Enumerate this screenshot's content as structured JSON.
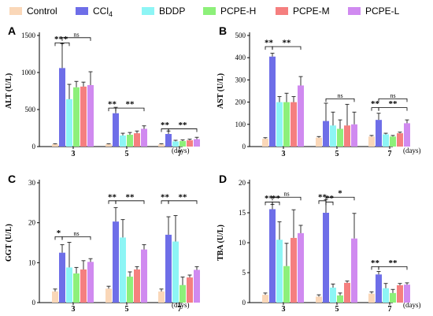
{
  "legend": [
    {
      "name": "Control",
      "sub": "",
      "color": "#FAD7B8"
    },
    {
      "name": "CCl",
      "sub": "4",
      "color": "#6E6EE8"
    },
    {
      "name": "BDDP",
      "sub": "",
      "color": "#8DF5F5"
    },
    {
      "name": "PCPE-H",
      "sub": "",
      "color": "#8DF07A"
    },
    {
      "name": "PCPE-M",
      "sub": "",
      "color": "#F57F7F"
    },
    {
      "name": "PCPE-L",
      "sub": "",
      "color": "#D08AF0"
    }
  ],
  "chart_data": [
    {
      "type": "bar",
      "panel": "A",
      "ylabel": "ALT (U/L)",
      "xlabel": "(days)",
      "ylim": [
        0,
        1500
      ],
      "yticks": [
        0,
        500,
        1000,
        1500
      ],
      "categories": [
        "3",
        "5",
        "7"
      ],
      "series": [
        {
          "name": "Control",
          "values": [
            30,
            30,
            30
          ],
          "errors": [
            8,
            8,
            8
          ]
        },
        {
          "name": "CCl4",
          "values": [
            1060,
            450,
            170
          ],
          "errors": [
            330,
            80,
            40
          ]
        },
        {
          "name": "BDDP",
          "values": [
            640,
            150,
            70
          ],
          "errors": [
            200,
            30,
            15
          ]
        },
        {
          "name": "PCPE-H",
          "values": [
            800,
            160,
            75
          ],
          "errors": [
            80,
            30,
            15
          ]
        },
        {
          "name": "PCPE-M",
          "values": [
            810,
            180,
            85
          ],
          "errors": [
            60,
            30,
            15
          ]
        },
        {
          "name": "PCPE-L",
          "values": [
            830,
            240,
            100
          ],
          "errors": [
            180,
            40,
            25
          ]
        }
      ],
      "annotations": [
        {
          "label": "**",
          "cat": 0,
          "from": 0,
          "to": 1,
          "y": 1400
        },
        {
          "label": "*",
          "cat": 0,
          "from": 1,
          "to": 2,
          "y": 1400
        },
        {
          "label": "ns",
          "cat": 0,
          "from": 1,
          "to": 5,
          "y": 1470
        },
        {
          "label": "**",
          "cat": 1,
          "from": 0,
          "to": 1,
          "y": 520
        },
        {
          "label": "**",
          "cat": 1,
          "from": 1,
          "to": 5,
          "y": 520
        },
        {
          "label": "**",
          "cat": 2,
          "from": 0,
          "to": 1,
          "y": 240
        },
        {
          "label": "**",
          "cat": 2,
          "from": 1,
          "to": 5,
          "y": 240
        }
      ]
    },
    {
      "type": "bar",
      "panel": "B",
      "ylabel": "AST (U/L)",
      "xlabel": "(days)",
      "ylim": [
        0,
        500
      ],
      "yticks": [
        0,
        100,
        200,
        300,
        400,
        500
      ],
      "categories": [
        "3",
        "5",
        "7"
      ],
      "series": [
        {
          "name": "Control",
          "values": [
            35,
            40,
            45
          ],
          "errors": [
            5,
            5,
            5
          ]
        },
        {
          "name": "CCl4",
          "values": [
            405,
            115,
            120
          ],
          "errors": [
            15,
            80,
            30
          ]
        },
        {
          "name": "BDDP",
          "values": [
            200,
            95,
            55
          ],
          "errors": [
            25,
            60,
            5
          ]
        },
        {
          "name": "PCPE-H",
          "values": [
            200,
            80,
            45
          ],
          "errors": [
            40,
            40,
            5
          ]
        },
        {
          "name": "PCPE-M",
          "values": [
            200,
            95,
            60
          ],
          "errors": [
            25,
            95,
            5
          ]
        },
        {
          "name": "PCPE-L",
          "values": [
            275,
            100,
            105
          ],
          "errors": [
            40,
            55,
            15
          ]
        }
      ],
      "annotations": [
        {
          "label": "**",
          "cat": 0,
          "from": 0,
          "to": 1,
          "y": 450
        },
        {
          "label": "**",
          "cat": 0,
          "from": 1,
          "to": 5,
          "y": 450
        },
        {
          "label": "ns",
          "cat": 1,
          "from": 1,
          "to": 5,
          "y": 215
        },
        {
          "label": "**",
          "cat": 2,
          "from": 0,
          "to": 1,
          "y": 175
        },
        {
          "label": "**",
          "cat": 2,
          "from": 1,
          "to": 5,
          "y": 175
        },
        {
          "label": "ns",
          "cat": 2,
          "from": 1,
          "to": 5,
          "y": 215
        }
      ]
    },
    {
      "type": "bar",
      "panel": "C",
      "ylabel": "GGT (U/L)",
      "xlabel": "(days)",
      "ylim": [
        0,
        30
      ],
      "yticks": [
        0,
        10,
        20,
        30
      ],
      "categories": [
        "3",
        "5",
        "7"
      ],
      "series": [
        {
          "name": "Control",
          "values": [
            2.8,
            3.5,
            2.8
          ],
          "errors": [
            0.6,
            0.6,
            0.6
          ]
        },
        {
          "name": "CCl4",
          "values": [
            12.5,
            20.3,
            17.0
          ],
          "errors": [
            2.0,
            3.5,
            4.5
          ]
        },
        {
          "name": "BDDP",
          "values": [
            8.8,
            16.3,
            15.3
          ],
          "errors": [
            6.3,
            4.5,
            6.5
          ]
        },
        {
          "name": "PCPE-H",
          "values": [
            7.3,
            6.5,
            4.4
          ],
          "errors": [
            1.5,
            1.2,
            2.0
          ]
        },
        {
          "name": "PCPE-M",
          "values": [
            8.3,
            8.3,
            6.3
          ],
          "errors": [
            2.2,
            0.7,
            0.6
          ]
        },
        {
          "name": "PCPE-L",
          "values": [
            10.2,
            13.3,
            8.2
          ],
          "errors": [
            0.8,
            1.2,
            0.8
          ]
        }
      ],
      "annotations": [
        {
          "label": "*",
          "cat": 0,
          "from": 0,
          "to": 1,
          "y": 16.5
        },
        {
          "label": "ns",
          "cat": 0,
          "from": 1,
          "to": 5,
          "y": 16.5
        },
        {
          "label": "**",
          "cat": 1,
          "from": 0,
          "to": 1,
          "y": 25.5
        },
        {
          "label": "**",
          "cat": 1,
          "from": 1,
          "to": 5,
          "y": 25.5
        },
        {
          "label": "**",
          "cat": 2,
          "from": 0,
          "to": 1,
          "y": 25.5
        },
        {
          "label": "**",
          "cat": 2,
          "from": 1,
          "to": 5,
          "y": 25.5
        }
      ]
    },
    {
      "type": "bar",
      "panel": "D",
      "ylabel": "TBA (U/L)",
      "xlabel": "(days)",
      "ylim": [
        0,
        20
      ],
      "yticks": [
        0,
        5,
        10,
        15,
        20
      ],
      "categories": [
        "3",
        "5",
        "7"
      ],
      "series": [
        {
          "name": "Control",
          "values": [
            1.3,
            1.0,
            1.5
          ],
          "errors": [
            0.3,
            0.3,
            0.3
          ]
        },
        {
          "name": "CCl4",
          "values": [
            15.6,
            15.0,
            4.7
          ],
          "errors": [
            0.8,
            2.2,
            0.5
          ]
        },
        {
          "name": "BDDP",
          "values": [
            10.5,
            2.5,
            2.4
          ],
          "errors": [
            3.0,
            0.6,
            0.8
          ]
        },
        {
          "name": "PCPE-H",
          "values": [
            6.1,
            1.2,
            1.6
          ],
          "errors": [
            3.8,
            0.4,
            0.6
          ]
        },
        {
          "name": "PCPE-M",
          "values": [
            10.8,
            3.3,
            2.9
          ],
          "errors": [
            4.7,
            0.3,
            0.3
          ]
        },
        {
          "name": "PCPE-L",
          "values": [
            11.6,
            10.7,
            3.0
          ],
          "errors": [
            1.3,
            4.2,
            0.3
          ]
        }
      ],
      "annotations": [
        {
          "label": "**",
          "cat": 0,
          "from": 0,
          "to": 1,
          "y": 16.8
        },
        {
          "label": "**",
          "cat": 0,
          "from": 1,
          "to": 2,
          "y": 16.8
        },
        {
          "label": "ns",
          "cat": 0,
          "from": 1,
          "to": 5,
          "y": 17.6
        },
        {
          "label": "**",
          "cat": 1,
          "from": 0,
          "to": 1,
          "y": 17.0
        },
        {
          "label": "**",
          "cat": 1,
          "from": 1,
          "to": 2,
          "y": 16.8
        },
        {
          "label": "*",
          "cat": 1,
          "from": 1,
          "to": 5,
          "y": 17.6
        },
        {
          "label": "**",
          "cat": 2,
          "from": 0,
          "to": 1,
          "y": 6.0
        },
        {
          "label": "**",
          "cat": 2,
          "from": 1,
          "to": 5,
          "y": 6.0
        }
      ]
    }
  ]
}
